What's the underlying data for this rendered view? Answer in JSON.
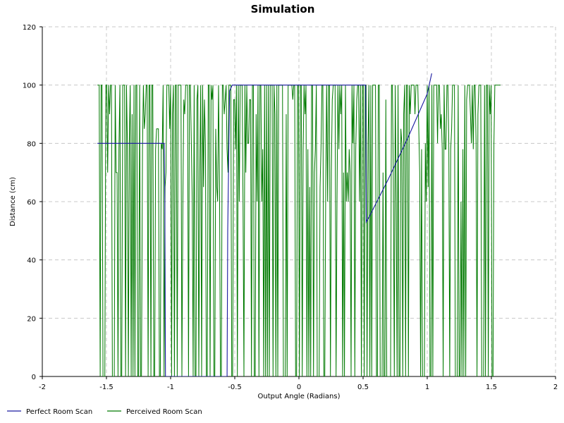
{
  "chart_data": {
    "type": "line",
    "title": "Simulation",
    "xlabel": "Output Angle (Radians)",
    "ylabel": "Distance (cm)",
    "xlim": [
      -2,
      2
    ],
    "ylim": [
      0,
      120
    ],
    "xticks": [
      -2,
      -1.5,
      -1,
      -0.5,
      0,
      0.5,
      1,
      1.5,
      2
    ],
    "yticks": [
      0,
      20,
      40,
      60,
      80,
      100,
      120
    ],
    "xtick_labels": [
      "-2",
      "-1.5",
      "-1",
      "-0.5",
      "0",
      "0.5",
      "1",
      "1.5",
      "2"
    ],
    "ytick_labels": [
      "0",
      "20",
      "40",
      "60",
      "80",
      "100",
      "120"
    ],
    "grid": true,
    "legend_position": "bottom-left",
    "series": [
      {
        "name": "Perfect Room Scan",
        "color": "#1a1aa0",
        "x": [
          -1.571,
          -1.05,
          -1.045,
          -1.04,
          -0.56,
          -0.555,
          -0.54,
          -0.52,
          -0.49,
          0.0,
          0.52,
          0.525,
          0.55,
          0.7,
          0.85,
          1.0,
          1.035
        ],
        "y": [
          80,
          80,
          60,
          0,
          0,
          50,
          98,
          100,
          100,
          100,
          100,
          53,
          55,
          68,
          82,
          97,
          104
        ]
      },
      {
        "name": "Perceived Room Scan",
        "color": "#007a00",
        "seed": 20240527,
        "x_start": -1.571,
        "x_end": 1.571,
        "samples": 430,
        "y_levels": [
          0,
          60,
          65,
          70,
          78,
          80,
          85,
          90,
          95,
          100
        ]
      }
    ]
  }
}
